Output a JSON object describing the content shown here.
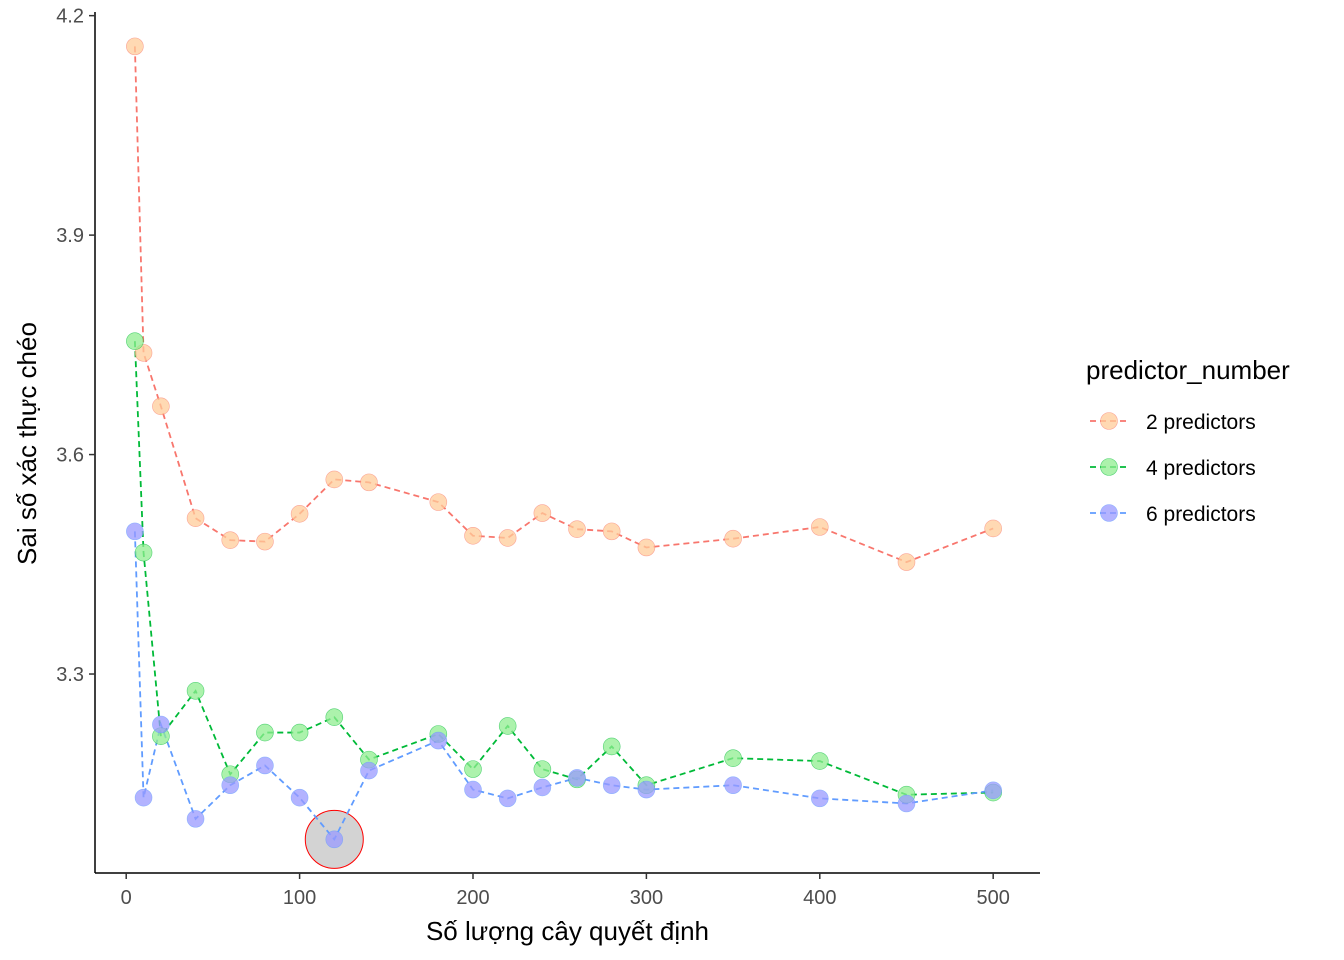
{
  "chart_data": {
    "type": "line",
    "xlabel": "Số lượng cây quyết định",
    "ylabel": "Sai số xác thực chéo",
    "xlim": [
      -18,
      527
    ],
    "ylim": [
      3.028,
      4.205
    ],
    "xticks": [
      0,
      100,
      200,
      300,
      400,
      500
    ],
    "yticks": [
      3.3,
      3.6,
      3.9,
      4.2
    ],
    "x_tick_labels": [
      "0",
      "100",
      "200",
      "300",
      "400",
      "500"
    ],
    "y_tick_labels": [
      "3.3",
      "3.6",
      "3.9",
      "4.2"
    ],
    "grid": false,
    "legend": {
      "title": "predictor_number",
      "position": "right"
    },
    "x": [
      5,
      10,
      20,
      40,
      60,
      80,
      100,
      120,
      140,
      180,
      200,
      220,
      240,
      260,
      280,
      300,
      350,
      400,
      450,
      500
    ],
    "series": [
      {
        "name": "2 predictors",
        "line_color": "#F8766D",
        "fill_color": "#FFCC99",
        "values": [
          4.158,
          3.739,
          3.666,
          3.513,
          3.483,
          3.481,
          3.519,
          3.566,
          3.562,
          3.535,
          3.489,
          3.486,
          3.52,
          3.498,
          3.495,
          3.473,
          3.485,
          3.501,
          3.453,
          3.499
        ]
      },
      {
        "name": "4 predictors",
        "line_color": "#00BA38",
        "fill_color": "#90EE90",
        "values": [
          3.755,
          3.466,
          3.215,
          3.277,
          3.163,
          3.22,
          3.22,
          3.241,
          3.183,
          3.218,
          3.17,
          3.229,
          3.17,
          3.156,
          3.201,
          3.148,
          3.185,
          3.181,
          3.135,
          3.138
        ]
      },
      {
        "name": "6 predictors",
        "line_color": "#619CFF",
        "fill_color": "#9999FF",
        "values": [
          3.495,
          3.131,
          3.231,
          3.102,
          3.148,
          3.175,
          3.131,
          3.074,
          3.168,
          3.209,
          3.142,
          3.13,
          3.145,
          3.158,
          3.148,
          3.142,
          3.148,
          3.13,
          3.123,
          3.141
        ]
      }
    ],
    "highlight": {
      "series": "6 predictors",
      "x": 120,
      "y": 3.074,
      "fill_color": "#D3D3D3",
      "stroke_color": "#FF0000"
    }
  }
}
